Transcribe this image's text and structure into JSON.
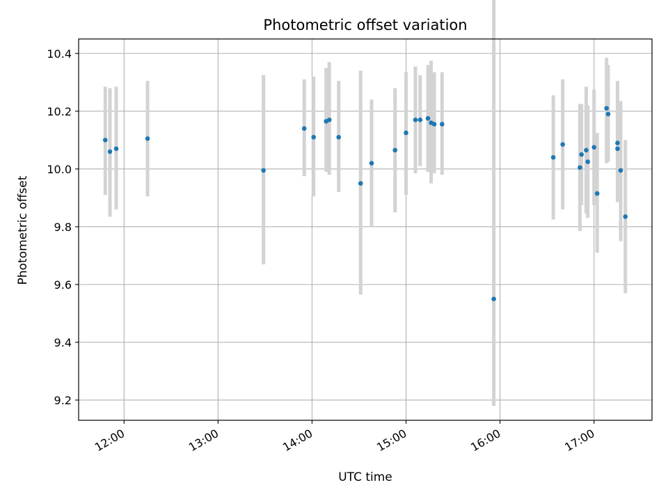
{
  "chart_data": {
    "type": "scatter",
    "title": "Photometric offset variation",
    "xlabel": "UTC time",
    "ylabel": "Photometric offset",
    "xlim": [
      "11:31",
      "17:37"
    ],
    "ylim": [
      9.13,
      10.45
    ],
    "x_ticks": [
      "12:00",
      "13:00",
      "14:00",
      "15:00",
      "16:00",
      "17:00"
    ],
    "y_ticks": [
      "9.2",
      "9.4",
      "9.6",
      "9.8",
      "10.0",
      "10.2",
      "10.4"
    ],
    "grid": true,
    "colors": {
      "points": "#1f77b4",
      "errorbars": "#d3d3d3",
      "grid": "#b0b0b0"
    },
    "points": [
      {
        "x": "11:48",
        "y": 10.1,
        "low": 9.91,
        "high": 10.285
      },
      {
        "x": "11:51",
        "y": 10.06,
        "low": 9.835,
        "high": 10.28
      },
      {
        "x": "11:55",
        "y": 10.07,
        "low": 9.86,
        "high": 10.285
      },
      {
        "x": "12:15",
        "y": 10.105,
        "low": 9.905,
        "high": 10.305
      },
      {
        "x": "13:29",
        "y": 9.995,
        "low": 9.67,
        "high": 10.325
      },
      {
        "x": "13:55",
        "y": 10.14,
        "low": 9.975,
        "high": 10.31
      },
      {
        "x": "14:01",
        "y": 10.11,
        "low": 9.905,
        "high": 10.32
      },
      {
        "x": "14:09",
        "y": 10.165,
        "low": 9.99,
        "high": 10.35
      },
      {
        "x": "14:11",
        "y": 10.17,
        "low": 9.98,
        "high": 10.37
      },
      {
        "x": "14:17",
        "y": 10.11,
        "low": 9.92,
        "high": 10.305
      },
      {
        "x": "14:31",
        "y": 9.95,
        "low": 9.565,
        "high": 10.34
      },
      {
        "x": "14:38",
        "y": 10.02,
        "low": 9.8,
        "high": 10.24
      },
      {
        "x": "14:53",
        "y": 10.065,
        "low": 9.85,
        "high": 10.28
      },
      {
        "x": "15:00",
        "y": 10.125,
        "low": 9.91,
        "high": 10.335
      },
      {
        "x": "15:06",
        "y": 10.17,
        "low": 9.985,
        "high": 10.355
      },
      {
        "x": "15:09",
        "y": 10.17,
        "low": 10.01,
        "high": 10.325
      },
      {
        "x": "15:14",
        "y": 10.175,
        "low": 9.99,
        "high": 10.36
      },
      {
        "x": "15:16",
        "y": 10.16,
        "low": 9.95,
        "high": 10.375
      },
      {
        "x": "15:18",
        "y": 10.155,
        "low": 9.985,
        "high": 10.335
      },
      {
        "x": "15:23",
        "y": 10.155,
        "low": 9.98,
        "high": 10.335
      },
      {
        "x": "15:56",
        "y": 9.55,
        "low": 9.18,
        "high": 10.915
      },
      {
        "x": "16:34",
        "y": 10.04,
        "low": 9.825,
        "high": 10.255
      },
      {
        "x": "16:40",
        "y": 10.085,
        "low": 9.86,
        "high": 10.31
      },
      {
        "x": "16:51",
        "y": 10.005,
        "low": 9.785,
        "high": 10.225
      },
      {
        "x": "16:52",
        "y": 10.05,
        "low": 9.875,
        "high": 10.225
      },
      {
        "x": "16:55",
        "y": 10.065,
        "low": 9.845,
        "high": 10.285
      },
      {
        "x": "16:56",
        "y": 10.025,
        "low": 9.83,
        "high": 10.22
      },
      {
        "x": "17:00",
        "y": 10.075,
        "low": 9.875,
        "high": 10.275
      },
      {
        "x": "17:02",
        "y": 9.915,
        "low": 9.71,
        "high": 10.125
      },
      {
        "x": "17:08",
        "y": 10.21,
        "low": 10.02,
        "high": 10.385
      },
      {
        "x": "17:09",
        "y": 10.19,
        "low": 10.025,
        "high": 10.36
      },
      {
        "x": "17:15",
        "y": 10.09,
        "low": 9.885,
        "high": 10.305
      },
      {
        "x": "17:15",
        "y": 10.07,
        "low": 9.895,
        "high": 10.275
      },
      {
        "x": "17:17",
        "y": 9.995,
        "low": 9.75,
        "high": 10.235
      },
      {
        "x": "17:20",
        "y": 9.835,
        "low": 9.57,
        "high": 10.1
      }
    ]
  }
}
